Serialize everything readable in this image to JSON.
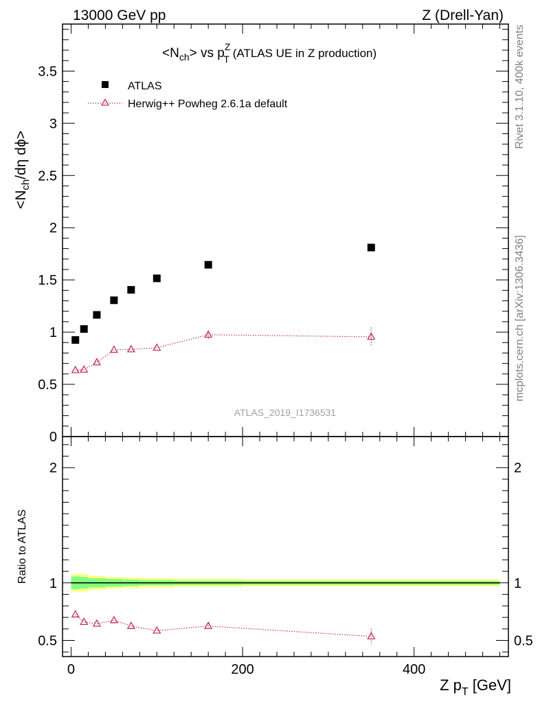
{
  "header": {
    "left": "13000 GeV pp",
    "right": "Z (Drell-Yan)"
  },
  "side_labels": {
    "rivet": "Rivet 3.1.10,  400k events",
    "mcplots": "mcplots.cern.ch [arXiv:1306.3436]"
  },
  "watermark": "ATLAS_2019_I1736531",
  "chart_data": [
    {
      "type": "scatter",
      "title": {
        "pre": "<N",
        "sub1": "ch",
        "mid": "> vs p",
        "sup2": "Z",
        "sub2": "T",
        "post": " (ATLAS UE in Z production)"
      },
      "ylabel": {
        "pre": "<N",
        "sub": "ch",
        "post": "/dη dϕ>"
      },
      "xlim": [
        -10,
        510
      ],
      "ylim": [
        0,
        3.95
      ],
      "yticks": [
        0,
        0.5,
        1,
        1.5,
        2,
        2.5,
        3,
        3.5
      ],
      "ytick_labels": [
        "0",
        "0.5",
        "1",
        "1.5",
        "2",
        "2.5",
        "3",
        "3.5"
      ],
      "legend_placement": "top-left",
      "series": [
        {
          "name": "ATLAS",
          "marker": "square",
          "color": "#000000",
          "x": [
            5,
            15,
            30,
            50,
            70,
            100,
            160,
            350
          ],
          "y": [
            0.925,
            1.03,
            1.165,
            1.305,
            1.405,
            1.515,
            1.645,
            1.81
          ]
        },
        {
          "name": "Herwig++ Powheg 2.6.1a default",
          "marker": "triangle-open",
          "line": "dotted",
          "color": "#c0306a",
          "x": [
            5,
            15,
            30,
            50,
            70,
            100,
            160,
            350
          ],
          "y": [
            0.635,
            0.64,
            0.71,
            0.83,
            0.835,
            0.85,
            0.975,
            0.955
          ],
          "yerr": [
            0.01,
            0.01,
            0.01,
            0.01,
            0.01,
            0.012,
            0.04,
            0.09
          ]
        }
      ]
    },
    {
      "type": "scatter",
      "ylabel": "Ratio to ATLAS",
      "xlabel": {
        "pre": "Z p",
        "sub": "T",
        "post": " [GeV]"
      },
      "xlim": [
        -10,
        510
      ],
      "ylim": [
        0.36,
        2.27
      ],
      "xticks": [
        0,
        200,
        400
      ],
      "xtick_labels": [
        "0",
        "200",
        "400"
      ],
      "yticks": [
        0.5,
        1,
        2
      ],
      "ytick_labels": [
        "0.5",
        "1",
        "2"
      ],
      "reference_line": 1,
      "bands": {
        "x_edges": [
          0,
          10,
          20,
          40,
          60,
          80,
          120,
          200,
          500
        ],
        "outer_half": [
          0.075,
          0.075,
          0.06,
          0.05,
          0.045,
          0.04,
          0.035,
          0.03
        ],
        "inner_half": [
          0.055,
          0.05,
          0.04,
          0.033,
          0.028,
          0.022,
          0.018,
          0.015
        ],
        "outer_color": "#ffff80",
        "inner_color": "#80ff80"
      },
      "series": [
        {
          "name": "Herwig++ Powheg 2.6.1a default",
          "marker": "triangle-open",
          "line": "dotted",
          "color": "#c0306a",
          "x": [
            5,
            15,
            30,
            50,
            70,
            100,
            160,
            350
          ],
          "y": [
            0.725,
            0.66,
            0.645,
            0.675,
            0.625,
            0.585,
            0.625,
            0.535
          ],
          "yerr": [
            0.01,
            0.01,
            0.01,
            0.01,
            0.01,
            0.01,
            0.025,
            0.065
          ]
        }
      ]
    }
  ]
}
